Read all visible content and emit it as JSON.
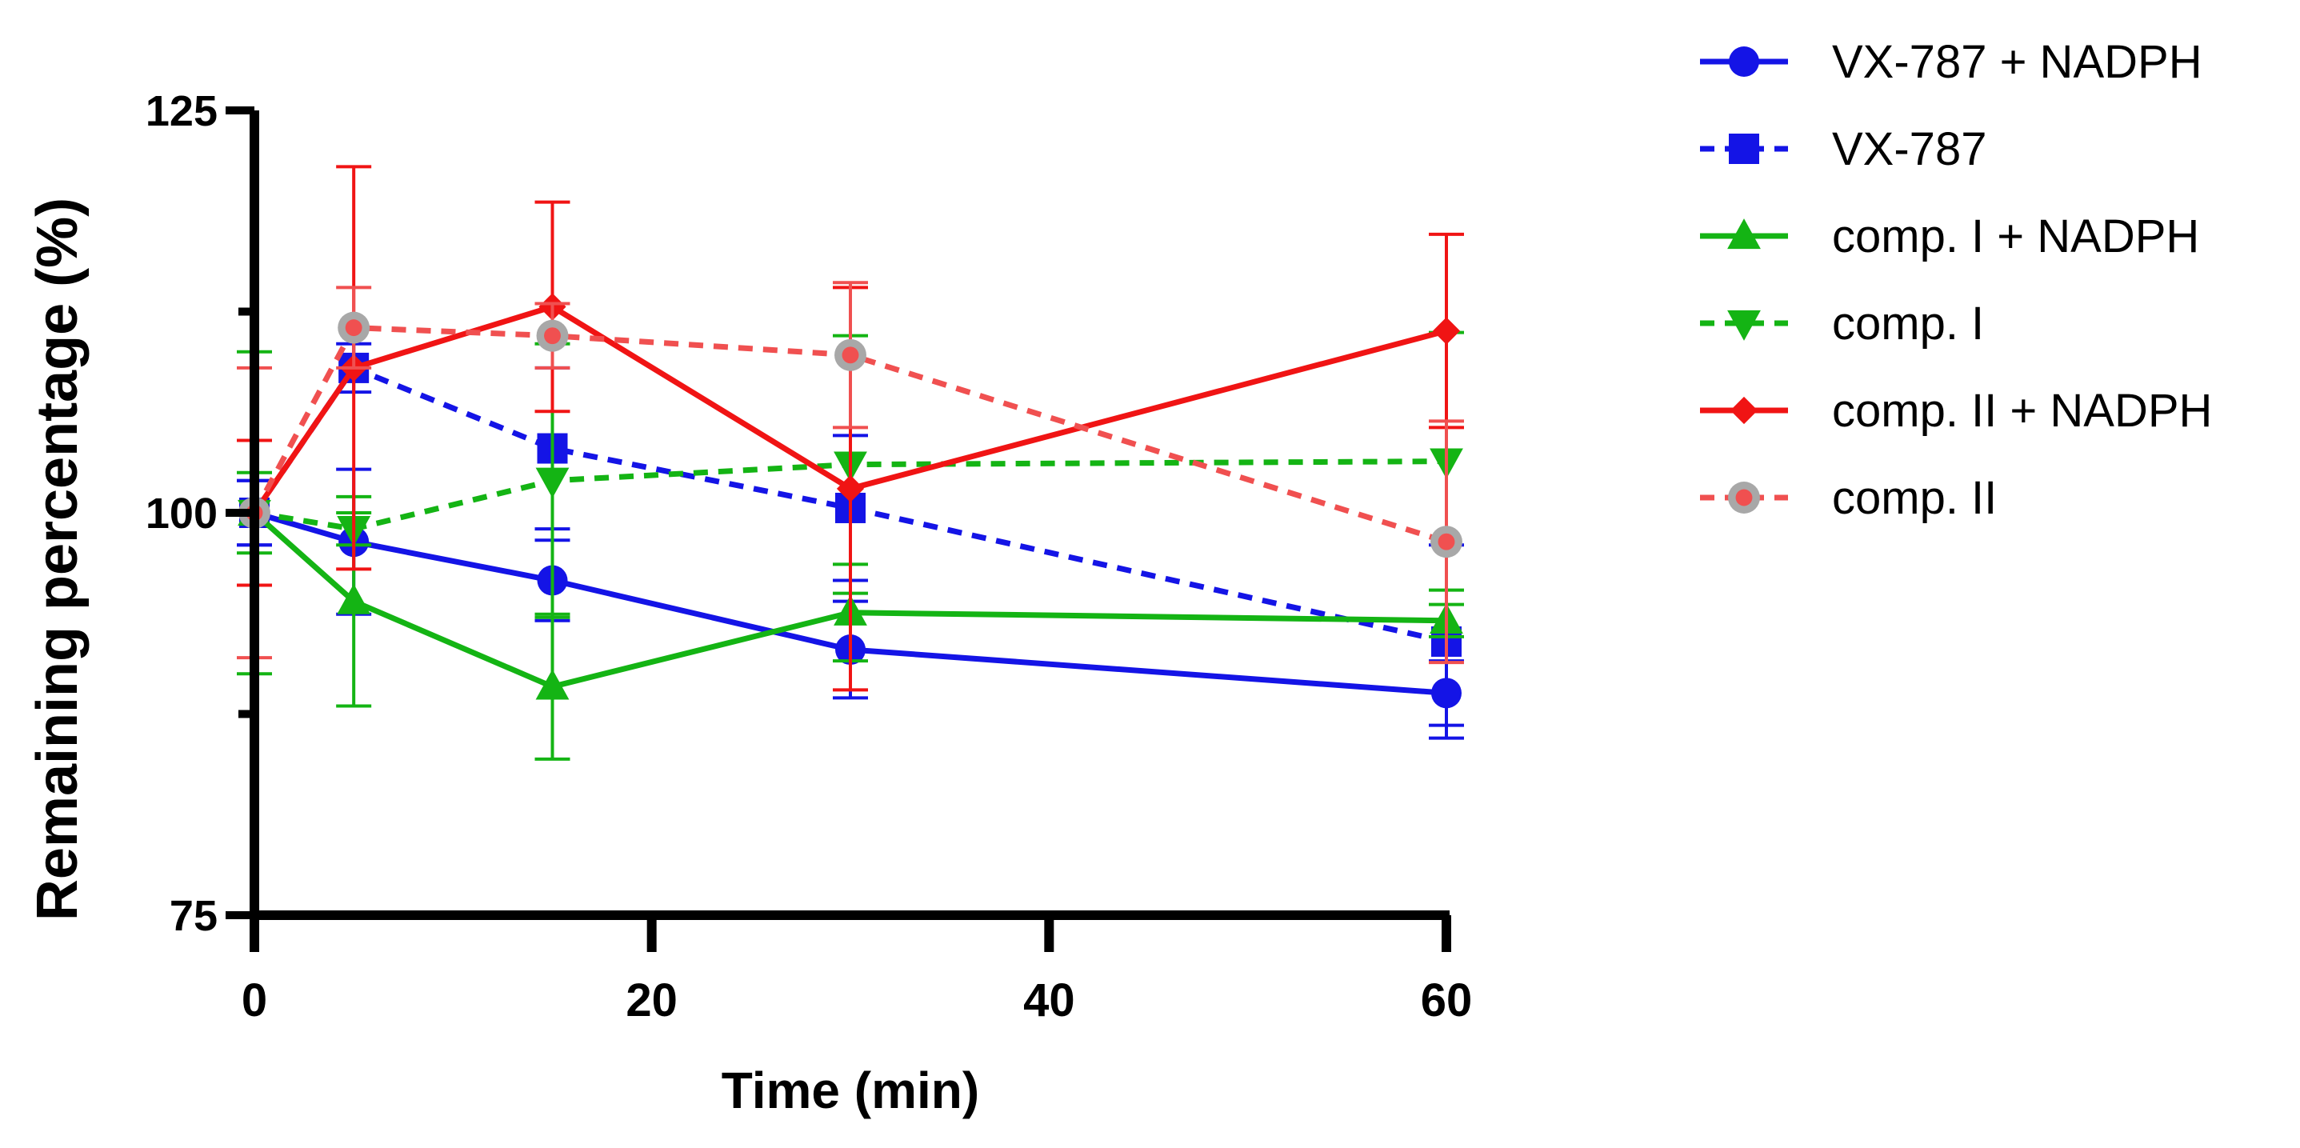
{
  "chart_data": {
    "type": "line",
    "xlabel": "Time (min)",
    "ylabel": "Remaining percentage (%)",
    "xlim": [
      0,
      60
    ],
    "ylim": [
      75,
      125
    ],
    "xticks": [
      0,
      20,
      40,
      60
    ],
    "xtick_labels": [
      "0",
      "20",
      "40",
      "60"
    ],
    "yticks": [
      75,
      100,
      125
    ],
    "ytick_labels": [
      "75",
      "100",
      "125"
    ],
    "y_minor_ticks": [
      87.5,
      112.5
    ],
    "legend_position": "right",
    "grid": false,
    "series": [
      {
        "name": "VX-787 + NADPH",
        "color": "#1414E6",
        "line_style": "solid",
        "marker": "circle",
        "x": [
          0,
          5,
          15,
          30,
          60
        ],
        "y": [
          100,
          98.2,
          95.8,
          91.5,
          88.8
        ],
        "err": [
          2,
          4.5,
          2.5,
          3,
          2
        ]
      },
      {
        "name": "VX-787",
        "color": "#1414E6",
        "line_style": "dashed",
        "marker": "square",
        "x": [
          0,
          5,
          15,
          30,
          60
        ],
        "y": [
          100,
          109,
          104,
          100.3,
          92
        ],
        "err": [
          2,
          1.5,
          5,
          4.5,
          6
        ]
      },
      {
        "name": "comp. I + NADPH",
        "color": "#14B414",
        "line_style": "solid",
        "marker": "triangle-up",
        "x": [
          0,
          5,
          15,
          30,
          60
        ],
        "y": [
          100,
          94.5,
          89.2,
          93.8,
          93.3
        ],
        "err": [
          10,
          6.5,
          4.5,
          3,
          1
        ]
      },
      {
        "name": "comp. I",
        "color": "#14B414",
        "line_style": "dashed",
        "marker": "triangle-down",
        "x": [
          0,
          5,
          15,
          30,
          60
        ],
        "y": [
          100,
          99,
          102,
          103,
          103.2
        ],
        "err": [
          2.5,
          1,
          8.5,
          8,
          8
        ]
      },
      {
        "name": "comp. II + NADPH",
        "color": "#F01414",
        "line_style": "solid",
        "marker": "diamond",
        "x": [
          0,
          5,
          15,
          30,
          60
        ],
        "y": [
          100,
          109,
          112.8,
          101.5,
          111.3
        ],
        "err": [
          4.5,
          12.5,
          6.5,
          12.5,
          6
        ]
      },
      {
        "name": "comp. II",
        "color": "#F05050",
        "line_style": "dashed",
        "marker": "circle-grey",
        "x": [
          0,
          5,
          15,
          30,
          60
        ],
        "y": [
          100,
          111.5,
          111,
          109.8,
          98.2
        ],
        "err": [
          9,
          2.5,
          2,
          4.5,
          7.5
        ]
      }
    ]
  }
}
